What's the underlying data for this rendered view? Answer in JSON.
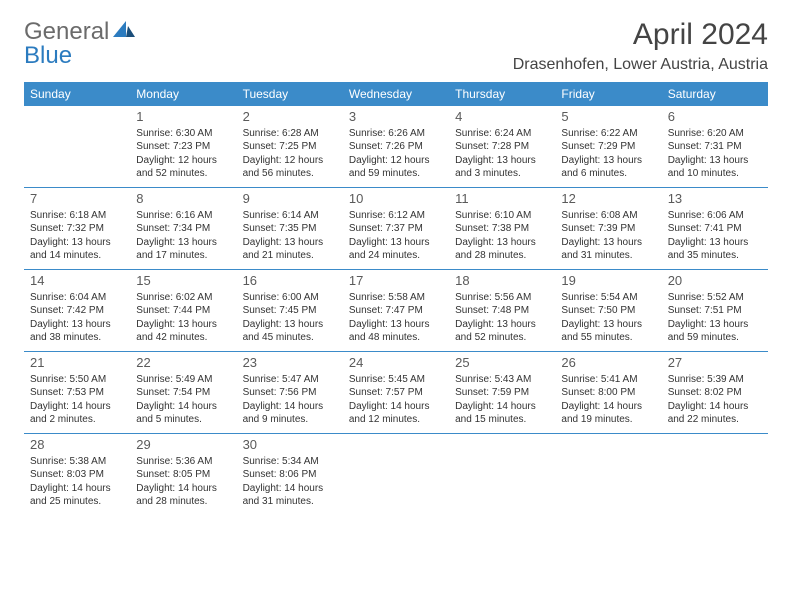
{
  "brand": {
    "part1": "General",
    "part2": "Blue",
    "colors": {
      "gray": "#6b6b6b",
      "blue": "#2b7bbf"
    }
  },
  "title": "April 2024",
  "location": "Drasenhofen, Lower Austria, Austria",
  "header_bg": "#3b8bc9",
  "dow": [
    "Sunday",
    "Monday",
    "Tuesday",
    "Wednesday",
    "Thursday",
    "Friday",
    "Saturday"
  ],
  "weeks": [
    [
      null,
      {
        "n": "1",
        "sr": "Sunrise: 6:30 AM",
        "ss": "Sunset: 7:23 PM",
        "dl": "Daylight: 12 hours and 52 minutes."
      },
      {
        "n": "2",
        "sr": "Sunrise: 6:28 AM",
        "ss": "Sunset: 7:25 PM",
        "dl": "Daylight: 12 hours and 56 minutes."
      },
      {
        "n": "3",
        "sr": "Sunrise: 6:26 AM",
        "ss": "Sunset: 7:26 PM",
        "dl": "Daylight: 12 hours and 59 minutes."
      },
      {
        "n": "4",
        "sr": "Sunrise: 6:24 AM",
        "ss": "Sunset: 7:28 PM",
        "dl": "Daylight: 13 hours and 3 minutes."
      },
      {
        "n": "5",
        "sr": "Sunrise: 6:22 AM",
        "ss": "Sunset: 7:29 PM",
        "dl": "Daylight: 13 hours and 6 minutes."
      },
      {
        "n": "6",
        "sr": "Sunrise: 6:20 AM",
        "ss": "Sunset: 7:31 PM",
        "dl": "Daylight: 13 hours and 10 minutes."
      }
    ],
    [
      {
        "n": "7",
        "sr": "Sunrise: 6:18 AM",
        "ss": "Sunset: 7:32 PM",
        "dl": "Daylight: 13 hours and 14 minutes."
      },
      {
        "n": "8",
        "sr": "Sunrise: 6:16 AM",
        "ss": "Sunset: 7:34 PM",
        "dl": "Daylight: 13 hours and 17 minutes."
      },
      {
        "n": "9",
        "sr": "Sunrise: 6:14 AM",
        "ss": "Sunset: 7:35 PM",
        "dl": "Daylight: 13 hours and 21 minutes."
      },
      {
        "n": "10",
        "sr": "Sunrise: 6:12 AM",
        "ss": "Sunset: 7:37 PM",
        "dl": "Daylight: 13 hours and 24 minutes."
      },
      {
        "n": "11",
        "sr": "Sunrise: 6:10 AM",
        "ss": "Sunset: 7:38 PM",
        "dl": "Daylight: 13 hours and 28 minutes."
      },
      {
        "n": "12",
        "sr": "Sunrise: 6:08 AM",
        "ss": "Sunset: 7:39 PM",
        "dl": "Daylight: 13 hours and 31 minutes."
      },
      {
        "n": "13",
        "sr": "Sunrise: 6:06 AM",
        "ss": "Sunset: 7:41 PM",
        "dl": "Daylight: 13 hours and 35 minutes."
      }
    ],
    [
      {
        "n": "14",
        "sr": "Sunrise: 6:04 AM",
        "ss": "Sunset: 7:42 PM",
        "dl": "Daylight: 13 hours and 38 minutes."
      },
      {
        "n": "15",
        "sr": "Sunrise: 6:02 AM",
        "ss": "Sunset: 7:44 PM",
        "dl": "Daylight: 13 hours and 42 minutes."
      },
      {
        "n": "16",
        "sr": "Sunrise: 6:00 AM",
        "ss": "Sunset: 7:45 PM",
        "dl": "Daylight: 13 hours and 45 minutes."
      },
      {
        "n": "17",
        "sr": "Sunrise: 5:58 AM",
        "ss": "Sunset: 7:47 PM",
        "dl": "Daylight: 13 hours and 48 minutes."
      },
      {
        "n": "18",
        "sr": "Sunrise: 5:56 AM",
        "ss": "Sunset: 7:48 PM",
        "dl": "Daylight: 13 hours and 52 minutes."
      },
      {
        "n": "19",
        "sr": "Sunrise: 5:54 AM",
        "ss": "Sunset: 7:50 PM",
        "dl": "Daylight: 13 hours and 55 minutes."
      },
      {
        "n": "20",
        "sr": "Sunrise: 5:52 AM",
        "ss": "Sunset: 7:51 PM",
        "dl": "Daylight: 13 hours and 59 minutes."
      }
    ],
    [
      {
        "n": "21",
        "sr": "Sunrise: 5:50 AM",
        "ss": "Sunset: 7:53 PM",
        "dl": "Daylight: 14 hours and 2 minutes."
      },
      {
        "n": "22",
        "sr": "Sunrise: 5:49 AM",
        "ss": "Sunset: 7:54 PM",
        "dl": "Daylight: 14 hours and 5 minutes."
      },
      {
        "n": "23",
        "sr": "Sunrise: 5:47 AM",
        "ss": "Sunset: 7:56 PM",
        "dl": "Daylight: 14 hours and 9 minutes."
      },
      {
        "n": "24",
        "sr": "Sunrise: 5:45 AM",
        "ss": "Sunset: 7:57 PM",
        "dl": "Daylight: 14 hours and 12 minutes."
      },
      {
        "n": "25",
        "sr": "Sunrise: 5:43 AM",
        "ss": "Sunset: 7:59 PM",
        "dl": "Daylight: 14 hours and 15 minutes."
      },
      {
        "n": "26",
        "sr": "Sunrise: 5:41 AM",
        "ss": "Sunset: 8:00 PM",
        "dl": "Daylight: 14 hours and 19 minutes."
      },
      {
        "n": "27",
        "sr": "Sunrise: 5:39 AM",
        "ss": "Sunset: 8:02 PM",
        "dl": "Daylight: 14 hours and 22 minutes."
      }
    ],
    [
      {
        "n": "28",
        "sr": "Sunrise: 5:38 AM",
        "ss": "Sunset: 8:03 PM",
        "dl": "Daylight: 14 hours and 25 minutes."
      },
      {
        "n": "29",
        "sr": "Sunrise: 5:36 AM",
        "ss": "Sunset: 8:05 PM",
        "dl": "Daylight: 14 hours and 28 minutes."
      },
      {
        "n": "30",
        "sr": "Sunrise: 5:34 AM",
        "ss": "Sunset: 8:06 PM",
        "dl": "Daylight: 14 hours and 31 minutes."
      },
      null,
      null,
      null,
      null
    ]
  ]
}
